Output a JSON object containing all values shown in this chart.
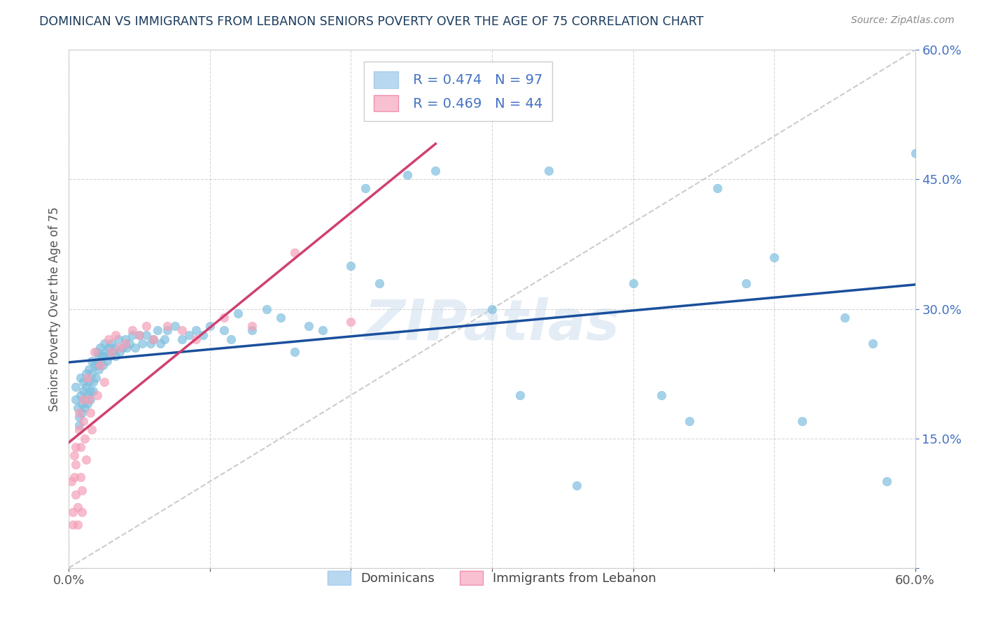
{
  "title": "DOMINICAN VS IMMIGRANTS FROM LEBANON SENIORS POVERTY OVER THE AGE OF 75 CORRELATION CHART",
  "source": "Source: ZipAtlas.com",
  "ylabel": "Seniors Poverty Over the Age of 75",
  "xlim": [
    0,
    0.6
  ],
  "ylim": [
    0,
    0.6
  ],
  "dominican_color": "#7fbfdf",
  "lebanon_color": "#f4a0b8",
  "legend_box_blue": "#b8d8f0",
  "legend_box_pink": "#f8c0d0",
  "blue_R": 0.474,
  "blue_N": 97,
  "pink_R": 0.469,
  "pink_N": 44,
  "dominican_x": [
    0.005,
    0.005,
    0.006,
    0.007,
    0.007,
    0.008,
    0.008,
    0.009,
    0.009,
    0.01,
    0.01,
    0.011,
    0.011,
    0.012,
    0.012,
    0.013,
    0.013,
    0.014,
    0.014,
    0.015,
    0.015,
    0.016,
    0.016,
    0.017,
    0.017,
    0.018,
    0.019,
    0.02,
    0.02,
    0.021,
    0.021,
    0.022,
    0.022,
    0.023,
    0.024,
    0.025,
    0.025,
    0.026,
    0.027,
    0.028,
    0.029,
    0.03,
    0.031,
    0.032,
    0.033,
    0.035,
    0.036,
    0.038,
    0.04,
    0.041,
    0.043,
    0.045,
    0.047,
    0.05,
    0.052,
    0.055,
    0.058,
    0.06,
    0.063,
    0.065,
    0.068,
    0.07,
    0.075,
    0.08,
    0.085,
    0.09,
    0.095,
    0.1,
    0.11,
    0.115,
    0.12,
    0.13,
    0.14,
    0.15,
    0.16,
    0.17,
    0.18,
    0.2,
    0.21,
    0.22,
    0.24,
    0.26,
    0.3,
    0.32,
    0.34,
    0.36,
    0.4,
    0.42,
    0.44,
    0.46,
    0.48,
    0.5,
    0.52,
    0.55,
    0.57,
    0.58,
    0.6
  ],
  "dominican_y": [
    0.21,
    0.195,
    0.185,
    0.175,
    0.165,
    0.22,
    0.2,
    0.19,
    0.18,
    0.215,
    0.205,
    0.195,
    0.185,
    0.225,
    0.21,
    0.2,
    0.19,
    0.23,
    0.215,
    0.205,
    0.195,
    0.24,
    0.225,
    0.215,
    0.205,
    0.235,
    0.22,
    0.25,
    0.235,
    0.245,
    0.23,
    0.255,
    0.24,
    0.245,
    0.235,
    0.26,
    0.245,
    0.25,
    0.24,
    0.255,
    0.245,
    0.26,
    0.25,
    0.255,
    0.245,
    0.265,
    0.25,
    0.255,
    0.265,
    0.255,
    0.26,
    0.27,
    0.255,
    0.27,
    0.26,
    0.27,
    0.26,
    0.265,
    0.275,
    0.26,
    0.265,
    0.275,
    0.28,
    0.265,
    0.27,
    0.275,
    0.27,
    0.28,
    0.275,
    0.265,
    0.295,
    0.275,
    0.3,
    0.29,
    0.25,
    0.28,
    0.275,
    0.35,
    0.44,
    0.33,
    0.455,
    0.46,
    0.3,
    0.2,
    0.46,
    0.095,
    0.33,
    0.2,
    0.17,
    0.44,
    0.33,
    0.36,
    0.17,
    0.29,
    0.26,
    0.1,
    0.48
  ],
  "lebanon_x": [
    0.002,
    0.003,
    0.003,
    0.004,
    0.004,
    0.005,
    0.005,
    0.005,
    0.006,
    0.006,
    0.007,
    0.007,
    0.008,
    0.008,
    0.009,
    0.009,
    0.01,
    0.01,
    0.011,
    0.012,
    0.013,
    0.014,
    0.015,
    0.016,
    0.018,
    0.02,
    0.022,
    0.025,
    0.028,
    0.03,
    0.033,
    0.036,
    0.04,
    0.045,
    0.05,
    0.055,
    0.06,
    0.07,
    0.08,
    0.09,
    0.11,
    0.13,
    0.16,
    0.2
  ],
  "lebanon_y": [
    0.1,
    0.065,
    0.05,
    0.13,
    0.105,
    0.14,
    0.12,
    0.085,
    0.07,
    0.05,
    0.18,
    0.16,
    0.14,
    0.105,
    0.09,
    0.065,
    0.195,
    0.17,
    0.15,
    0.125,
    0.22,
    0.195,
    0.18,
    0.16,
    0.25,
    0.2,
    0.235,
    0.215,
    0.265,
    0.25,
    0.27,
    0.255,
    0.26,
    0.275,
    0.27,
    0.28,
    0.265,
    0.28,
    0.275,
    0.265,
    0.29,
    0.28,
    0.365,
    0.285
  ],
  "watermark_text": "ZIPatlas",
  "title_color": "#1a3a5c",
  "source_color": "#888888",
  "axis_label_color": "#555555",
  "tick_color_right": "#4472c4",
  "tick_color_bottom": "#555555",
  "blue_line_color": "#1a4f9c",
  "pink_line_color": "#d04070",
  "diagonal_color": "#cccccc",
  "grid_color": "#cccccc",
  "background_color": "#ffffff",
  "legend_text_color": "#4472c4"
}
